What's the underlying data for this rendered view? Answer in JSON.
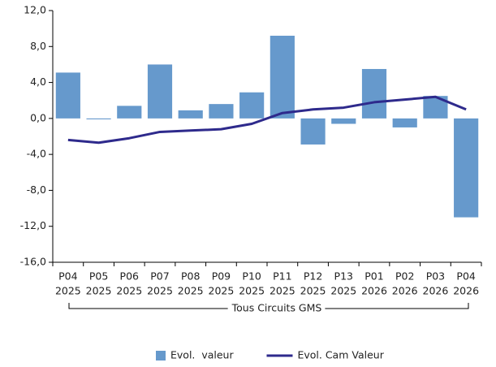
{
  "chart_data": {
    "type": "bar-line",
    "categories": [
      [
        "P04",
        "2025"
      ],
      [
        "P05",
        "2025"
      ],
      [
        "P06",
        "2025"
      ],
      [
        "P07",
        "2025"
      ],
      [
        "P08",
        "2025"
      ],
      [
        "P09",
        "2025"
      ],
      [
        "P10",
        "2025"
      ],
      [
        "P11",
        "2025"
      ],
      [
        "P12",
        "2025"
      ],
      [
        "P13",
        "2025"
      ],
      [
        "P01",
        "2026"
      ],
      [
        "P02",
        "2026"
      ],
      [
        "P03",
        "2026"
      ],
      [
        "P04",
        "2026"
      ]
    ],
    "group_label": "Tous Circuits GMS",
    "series": [
      {
        "name": "Evol.  valeur",
        "type": "bar",
        "color": "#6699cc",
        "values": [
          5.1,
          -0.1,
          1.4,
          6.0,
          0.9,
          1.6,
          2.9,
          9.2,
          -2.9,
          -0.6,
          5.5,
          -1.0,
          2.5,
          -11.0
        ]
      },
      {
        "name": "Evol. Cam Valeur",
        "type": "line",
        "color": "#2e2a8c",
        "values": [
          -2.4,
          -2.7,
          -2.2,
          -1.5,
          -1.35,
          -1.2,
          -0.6,
          0.6,
          1.0,
          1.2,
          1.8,
          2.1,
          2.4,
          1.0
        ]
      }
    ],
    "ylim": [
      -16,
      12
    ],
    "yticks": [
      {
        "value": -16,
        "label": "-16,0"
      },
      {
        "value": -12,
        "label": "-12,0"
      },
      {
        "value": -8,
        "label": "-8,0"
      },
      {
        "value": -4,
        "label": "-4,0"
      },
      {
        "value": 0,
        "label": "0,0"
      },
      {
        "value": 4,
        "label": "4,0"
      },
      {
        "value": 8,
        "label": "8,0"
      },
      {
        "value": 12,
        "label": "12,0"
      }
    ],
    "legend": "bottom"
  }
}
